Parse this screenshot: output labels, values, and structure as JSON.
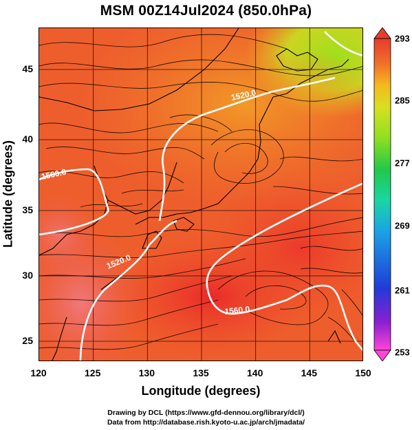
{
  "title": "MSM 00Z14Jul2024 (850.0hPa)",
  "x_axis": {
    "label": "Longitude (degrees)",
    "range": [
      120,
      150
    ],
    "ticks": [
      "120",
      "125",
      "130",
      "135",
      "140",
      "145",
      "150"
    ]
  },
  "y_axis": {
    "label": "Latitude  (degrees)",
    "range": [
      22.4,
      47.6
    ],
    "ticks": [
      "25",
      "30",
      "35",
      "40",
      "45"
    ]
  },
  "colorbar": {
    "range": [
      253,
      293
    ],
    "ticks": [
      "293",
      "285",
      "277",
      "269",
      "261",
      "253"
    ],
    "colors": [
      "#ff44d8",
      "#8b1fd0",
      "#1f3cd8",
      "#1aa2e8",
      "#19d6a4",
      "#22c84a",
      "#8ee020",
      "#d8e020",
      "#f5b81e",
      "#f07028",
      "#e63c2c",
      "#d83030"
    ]
  },
  "contour_labels": [
    "1560.0",
    "1520.0",
    "1520.0",
    "1560.0"
  ],
  "credits": [
    "Drawing by DCL (https://www.gfd-dennou.org/library/dcl/)",
    "Data from http://database.rish.kyoto-u.ac.jp/arch/jmadata/"
  ]
}
